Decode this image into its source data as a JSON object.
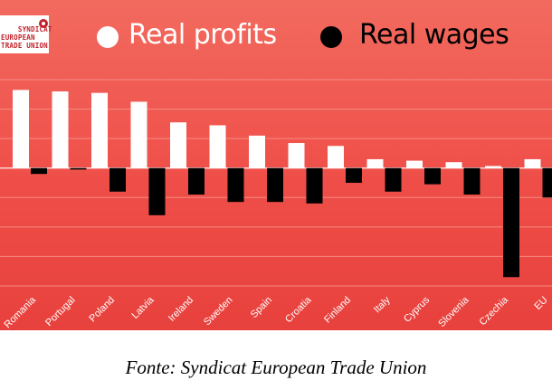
{
  "logo": {
    "text": "SYNDICAT\nEUROPEAN\nTRADE UNION"
  },
  "legend": [
    {
      "label": "Real profits",
      "color": "#ffffff"
    },
    {
      "label": "Real wages",
      "color": "#000000"
    }
  ],
  "caption": "Fonte: Syndicat European Trade Union",
  "colors": {
    "panel": "#ef4e48",
    "gridline": "#f59a92",
    "profits": "#ffffff",
    "wages": "#000000",
    "tick_text": "#ffffff"
  },
  "chart_data": {
    "type": "bar",
    "categories": [
      "Romania",
      "Portugal",
      "Poland",
      "Latvia",
      "Ireland",
      "Sweden",
      "Spain",
      "Croatia",
      "Finland",
      "Italy",
      "Cyprus",
      "Slovenia",
      "Czechia",
      "EU"
    ],
    "series": [
      {
        "name": "Real profits",
        "values": [
          26.5,
          26,
          25.5,
          22.5,
          15.5,
          14.5,
          11,
          8.5,
          7.5,
          3,
          2.5,
          2,
          0.7,
          3
        ]
      },
      {
        "name": "Real wages",
        "values": [
          -2,
          -0.5,
          -8,
          -16,
          -9,
          -11.5,
          -11.5,
          -12,
          -5,
          -8,
          -5.5,
          -9,
          -37,
          -10
        ]
      }
    ],
    "ylim": [
      -40,
      30
    ],
    "grid": true,
    "legend_position": "top"
  }
}
